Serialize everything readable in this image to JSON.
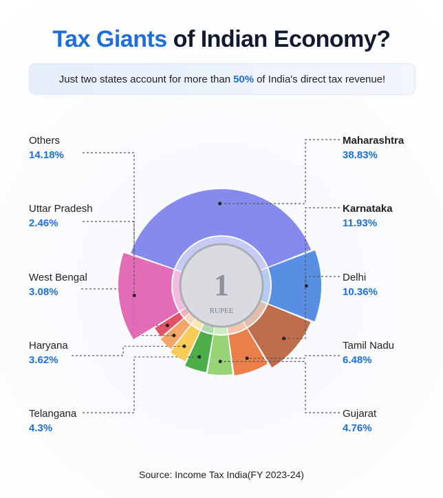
{
  "chart_data": {
    "type": "pie",
    "title_part1": "Tax Giants",
    "title_part2": "of Indian Economy?",
    "subtitle_before": "Just two states account for more than",
    "subtitle_highlight": "50%",
    "subtitle_after": "of India's direct tax revenue!",
    "source": "Source: Income Tax India(FY 2023-24)",
    "coin_text": "1 RUPEE",
    "slices": [
      {
        "label": "Maharashtra",
        "value": 38.83,
        "display": "38.83%",
        "color": "#7b80ea"
      },
      {
        "label": "Karnataka",
        "value": 11.93,
        "display": "11.93%",
        "color": "#4a86e0"
      },
      {
        "label": "Delhi",
        "value": 10.36,
        "display": "10.36%",
        "color": "#b8623c"
      },
      {
        "label": "Tamil Nadu",
        "value": 6.48,
        "display": "6.48%",
        "color": "#e8743a"
      },
      {
        "label": "Gujarat",
        "value": 4.76,
        "display": "4.76%",
        "color": "#8fd06a"
      },
      {
        "label": "Telangana",
        "value": 4.3,
        "display": "4.3%",
        "color": "#3ea63a"
      },
      {
        "label": "Haryana",
        "value": 3.62,
        "display": "3.62%",
        "color": "#f6c84a"
      },
      {
        "label": "West Bengal",
        "value": 3.08,
        "display": "3.08%",
        "color": "#f2a05a"
      },
      {
        "label": "Uttar Pradesh",
        "value": 2.46,
        "display": "2.46%",
        "color": "#e0445a"
      },
      {
        "label": "Others",
        "value": 14.18,
        "display": "14.18%",
        "color": "#e060b0"
      }
    ]
  }
}
